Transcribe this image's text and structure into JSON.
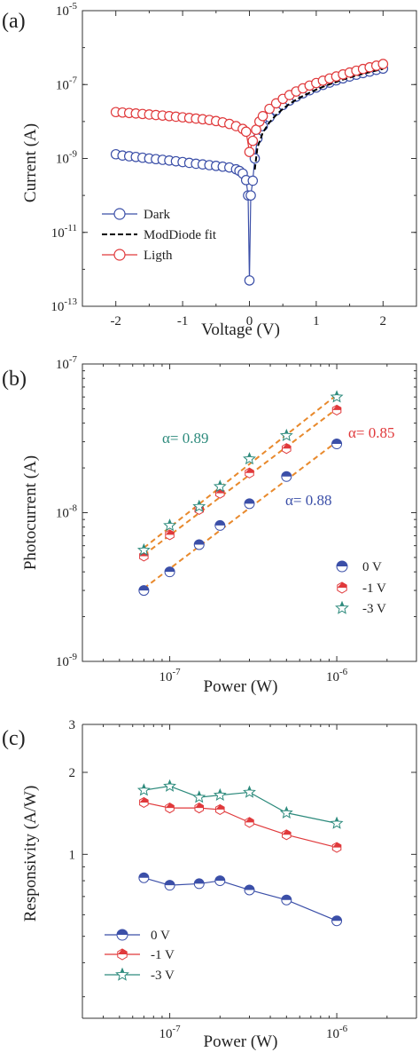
{
  "chart_data": [
    {
      "panel_label": "(a)",
      "type": "line",
      "xlabel": "Voltage (V)",
      "ylabel": "Current (A)",
      "x_ticks": [
        -2,
        -1,
        0,
        1,
        2
      ],
      "x_tick_labels": [
        "-2",
        "-1",
        "0",
        "1",
        "2"
      ],
      "y_scale": "log",
      "y_tick_exponents": [
        -13,
        -11,
        -9,
        -7,
        -5
      ],
      "xlim": [
        -2.5,
        2.5
      ],
      "ylim": [
        1e-13,
        1e-05
      ],
      "legend_position": "bottom-left",
      "series": [
        {
          "name": "Dark",
          "color": "#3b4fa8",
          "style": "line-open-circle",
          "x": [
            -2,
            -1.9,
            -1.8,
            -1.7,
            -1.6,
            -1.5,
            -1.4,
            -1.3,
            -1.2,
            -1.1,
            -1.0,
            -0.9,
            -0.8,
            -0.7,
            -0.6,
            -0.5,
            -0.4,
            -0.3,
            -0.2,
            -0.15,
            -0.1,
            -0.05,
            -0.02,
            0.0,
            0.02,
            0.05,
            0.08,
            0.12,
            0.2,
            0.3,
            0.4,
            0.5,
            0.6,
            0.7,
            0.8,
            0.9,
            1.0,
            1.1,
            1.2,
            1.3,
            1.4,
            1.5,
            1.6,
            1.7,
            1.8,
            1.9,
            2.0
          ],
          "y": [
            1.3e-09,
            1.2e-09,
            1.15e-09,
            1.1e-09,
            1.05e-09,
            1e-09,
            9.6e-10,
            9.2e-10,
            8.8e-10,
            8.4e-10,
            8e-10,
            7.6e-10,
            7.2e-10,
            6.9e-10,
            6.6e-10,
            6.3e-10,
            6e-10,
            5.7e-10,
            5.1e-10,
            4.6e-10,
            3.9e-10,
            2.6e-10,
            1e-10,
            5e-13,
            1e-10,
            2.5e-10,
            1e-09,
            3.5e-09,
            7.5e-09,
            1.3e-08,
            2e-08,
            2.8e-08,
            3.7e-08,
            4.7e-08,
            5.8e-08,
            7e-08,
            8.3e-08,
            9.8e-08,
            1.13e-07,
            1.3e-07,
            1.47e-07,
            1.65e-07,
            1.85e-07,
            2.05e-07,
            2.25e-07,
            2.5e-07,
            2.7e-07
          ]
        },
        {
          "name": "ModDiode fit",
          "color": "#000000",
          "style": "dashed",
          "x": [
            0.08,
            0.12,
            0.2,
            0.3,
            0.4,
            0.5,
            0.6,
            0.7,
            0.8,
            0.9,
            1.0,
            1.1,
            1.2,
            1.3,
            1.4,
            1.5,
            1.6,
            1.7,
            1.8,
            1.9,
            2.0
          ],
          "y": [
            5e-10,
            2e-09,
            5e-09,
            9.5e-09,
            1.5e-08,
            2.2e-08,
            3e-08,
            3.9e-08,
            4.9e-08,
            6e-08,
            7.3e-08,
            8.7e-08,
            1.02e-07,
            1.18e-07,
            1.36e-07,
            1.55e-07,
            1.75e-07,
            1.95e-07,
            2.17e-07,
            2.4e-07,
            2.65e-07
          ]
        },
        {
          "name": "Ligth",
          "color": "#e0393b",
          "style": "line-open-circle",
          "x": [
            -2,
            -1.9,
            -1.8,
            -1.7,
            -1.6,
            -1.5,
            -1.4,
            -1.3,
            -1.2,
            -1.1,
            -1.0,
            -0.9,
            -0.8,
            -0.7,
            -0.6,
            -0.5,
            -0.4,
            -0.3,
            -0.2,
            -0.1,
            -0.05,
            0.0,
            0.05,
            0.1,
            0.15,
            0.2,
            0.3,
            0.4,
            0.5,
            0.6,
            0.7,
            0.8,
            0.9,
            1.0,
            1.1,
            1.2,
            1.3,
            1.4,
            1.5,
            1.6,
            1.7,
            1.8,
            1.9,
            2.0
          ],
          "y": [
            1.8e-08,
            1.75e-08,
            1.7e-08,
            1.65e-08,
            1.6e-08,
            1.55e-08,
            1.5e-08,
            1.45e-08,
            1.4e-08,
            1.35e-08,
            1.3e-08,
            1.25e-08,
            1.2e-08,
            1.15e-08,
            1.1e-08,
            1.03e-08,
            9.5e-09,
            8.6e-09,
            7.5e-09,
            6.3e-09,
            5.3e-09,
            1.5e-09,
            3e-09,
            6e-09,
            1e-08,
            1.4e-08,
            2.2e-08,
            3.1e-08,
            4.1e-08,
            5.2e-08,
            6.5e-08,
            7.9e-08,
            9.4e-08,
            1.1e-07,
            1.27e-07,
            1.46e-07,
            1.66e-07,
            1.88e-07,
            2.12e-07,
            2.37e-07,
            2.64e-07,
            2.93e-07,
            3.25e-07,
            3.6e-07
          ]
        }
      ]
    },
    {
      "panel_label": "(b)",
      "type": "scatter",
      "xlabel": "Power (W)",
      "ylabel": "Photocurrent (A)",
      "x_scale": "log",
      "y_scale": "log",
      "x_tick_exponents": [
        -7,
        -6
      ],
      "y_tick_exponents": [
        -9,
        -8,
        -7
      ],
      "xlim": [
        3e-08,
        3e-06
      ],
      "ylim": [
        1e-09,
        1e-07
      ],
      "legend_position": "bottom-right",
      "x": [
        7e-08,
        1e-07,
        1.5e-07,
        2e-07,
        3e-07,
        5e-07,
        1e-06
      ],
      "series": [
        {
          "name": "0 V",
          "color": "#3b4fa8",
          "marker": "half-circle",
          "values": [
            3e-09,
            4e-09,
            6.1e-09,
            8.2e-09,
            1.15e-08,
            1.75e-08,
            2.9e-08
          ]
        },
        {
          "name": "-1 V",
          "color": "#e0393b",
          "marker": "half-hexagon",
          "values": [
            5.1e-09,
            7.1e-09,
            1.05e-08,
            1.35e-08,
            1.85e-08,
            2.7e-08,
            4.9e-08
          ]
        },
        {
          "name": "-3 V",
          "color": "#2e8b7d",
          "marker": "star",
          "values": [
            5.6e-09,
            8.2e-09,
            1.1e-08,
            1.5e-08,
            2.3e-08,
            3.3e-08,
            6e-08
          ]
        }
      ],
      "fit_lines": [
        {
          "color": "#e8892c",
          "x": [
            7e-08,
            1e-06
          ],
          "y": [
            3.1e-09,
            3e-08
          ]
        },
        {
          "color": "#e8892c",
          "x": [
            7e-08,
            1e-06
          ],
          "y": [
            5.2e-09,
            5e-08
          ]
        },
        {
          "color": "#e8892c",
          "x": [
            7e-08,
            1e-06
          ],
          "y": [
            5.8e-09,
            6.2e-08
          ]
        }
      ],
      "annotations": [
        {
          "text": "α= 0.89",
          "color": "#2e8b7d"
        },
        {
          "text": "α= 0.85",
          "color": "#e0393b"
        },
        {
          "text": "α= 0.88",
          "color": "#3b4fa8"
        }
      ]
    },
    {
      "panel_label": "(c)",
      "type": "line",
      "xlabel": "Power (W)",
      "ylabel": "Responsivity (A/W)",
      "x_scale": "log",
      "y_scale": "log",
      "x_tick_exponents": [
        -7,
        -6
      ],
      "y_ticks": [
        1,
        2,
        3
      ],
      "y_tick_labels": [
        "1",
        "2",
        "3"
      ],
      "xlim": [
        3e-08,
        3e-06
      ],
      "ylim": [
        0.25,
        3
      ],
      "legend_position": "bottom-left",
      "x": [
        7e-08,
        1e-07,
        1.5e-07,
        2e-07,
        3e-07,
        5e-07,
        1e-06
      ],
      "series": [
        {
          "name": "0 V",
          "color": "#3b4fa8",
          "marker": "half-circle",
          "values": [
            0.82,
            0.77,
            0.78,
            0.8,
            0.74,
            0.68,
            0.57
          ]
        },
        {
          "name": "-1 V",
          "color": "#e0393b",
          "marker": "half-hexagon",
          "values": [
            1.55,
            1.48,
            1.48,
            1.46,
            1.31,
            1.18,
            1.06
          ]
        },
        {
          "name": "-3 V",
          "color": "#2e8b7d",
          "marker": "star",
          "values": [
            1.72,
            1.78,
            1.62,
            1.65,
            1.69,
            1.42,
            1.3
          ]
        }
      ]
    }
  ]
}
